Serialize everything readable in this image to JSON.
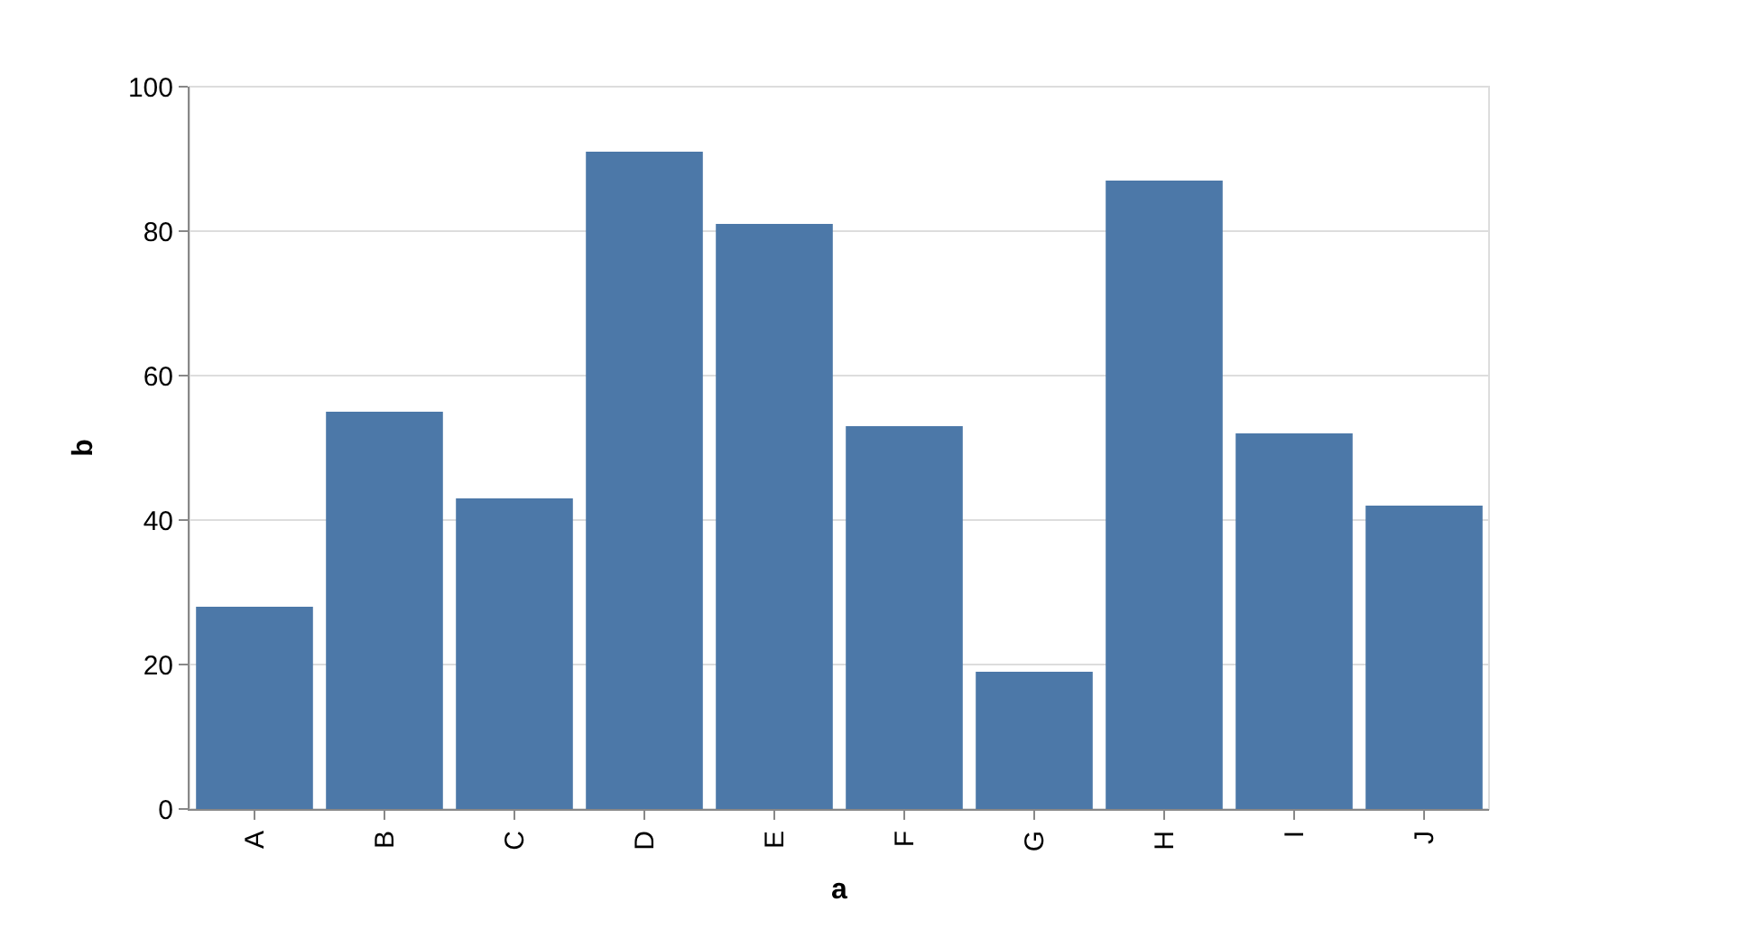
{
  "chart_data": {
    "type": "bar",
    "xlabel": "a",
    "ylabel": "b",
    "categories": [
      "A",
      "B",
      "C",
      "D",
      "E",
      "F",
      "G",
      "H",
      "I",
      "J"
    ],
    "values": [
      28,
      55,
      43,
      91,
      81,
      53,
      19,
      87,
      52,
      42
    ],
    "color": "#4c78a8",
    "ylim": [
      0,
      100
    ],
    "yticks": [
      0,
      20,
      40,
      60,
      80,
      100
    ],
    "grid": "y",
    "legend": false
  }
}
